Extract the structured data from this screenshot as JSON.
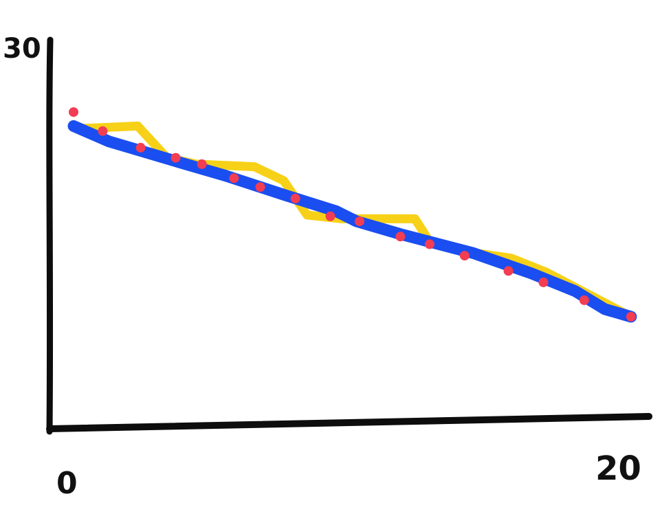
{
  "chart_data": {
    "type": "line",
    "title": "",
    "xlabel": "",
    "ylabel": "",
    "xlim": [
      0,
      20
    ],
    "ylim": [
      0,
      30
    ],
    "x_tick_labels": [
      "0",
      "20"
    ],
    "y_tick_labels": [
      "30"
    ],
    "grid": false,
    "legend": "none",
    "series": [
      {
        "style": "thick-line",
        "color": "#f7d117",
        "points": [
          [
            1,
            23.4
          ],
          [
            3,
            23.6
          ],
          [
            4,
            21.1
          ],
          [
            5,
            20.6
          ],
          [
            7,
            20.4
          ],
          [
            8,
            19.3
          ],
          [
            8.8,
            16.6
          ],
          [
            10,
            16.3
          ],
          [
            12.5,
            16.3
          ],
          [
            13,
            14.5
          ],
          [
            14.6,
            13.6
          ],
          [
            15.8,
            13.2
          ],
          [
            17,
            12.1
          ],
          [
            19.9,
            8.6
          ]
        ]
      },
      {
        "style": "thick-line",
        "color": "#1a4ef0",
        "points": [
          [
            0.8,
            23.6
          ],
          [
            2,
            22.4
          ],
          [
            4.5,
            20.7
          ],
          [
            6,
            19.7
          ],
          [
            8,
            18.2
          ],
          [
            9.8,
            16.9
          ],
          [
            10.5,
            16.1
          ],
          [
            12,
            15.1
          ],
          [
            14.5,
            13.6
          ],
          [
            16.5,
            12.0
          ],
          [
            18,
            10.6
          ],
          [
            19,
            9.2
          ],
          [
            19.9,
            8.6
          ]
        ]
      },
      {
        "style": "points",
        "color": "#f23d52",
        "points": [
          [
            0.8,
            24.7
          ],
          [
            1.8,
            23.2
          ],
          [
            3.1,
            21.9
          ],
          [
            4.3,
            21.1
          ],
          [
            5.2,
            20.6
          ],
          [
            6.3,
            19.5
          ],
          [
            7.2,
            18.8
          ],
          [
            8.4,
            17.9
          ],
          [
            9.6,
            16.5
          ],
          [
            10.6,
            16.1
          ],
          [
            12,
            14.9
          ],
          [
            13,
            14.3
          ],
          [
            14.2,
            13.4
          ],
          [
            15.7,
            12.2
          ],
          [
            16.9,
            11.3
          ],
          [
            18.3,
            9.9
          ],
          [
            19.9,
            8.6
          ]
        ]
      }
    ]
  }
}
